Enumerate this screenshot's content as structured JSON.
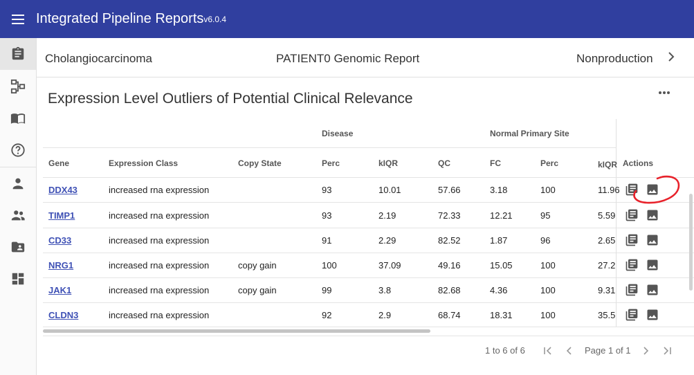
{
  "header": {
    "menu_icon": "menu-icon",
    "title": "Integrated Pipeline Reports",
    "version": "v6.0.4",
    "bg_color": "#303f9f"
  },
  "sidebar": {
    "items": [
      {
        "icon": "clipboard-icon",
        "active": true
      },
      {
        "icon": "pipeline-icon"
      },
      {
        "icon": "book-icon"
      },
      {
        "icon": "help-icon"
      },
      {
        "icon": "person-icon"
      },
      {
        "icon": "people-icon"
      },
      {
        "icon": "folder-person-icon"
      },
      {
        "icon": "dashboard-icon"
      }
    ]
  },
  "subheader": {
    "left": "Cholangiocarcinoma",
    "center": "PATIENT0 Genomic Report",
    "right": "Nonproduction",
    "chevron_icon": "chevron-right-icon"
  },
  "card": {
    "title": "Expression Level Outliers of Potential Clinical Relevance",
    "more_icon": "more-horiz-icon"
  },
  "table": {
    "groups": {
      "disease": "Disease",
      "normal": "Normal Primary Site"
    },
    "columns": {
      "gene": "Gene",
      "expression_class": "Expression Class",
      "copy_state": "Copy State",
      "disease_perc": "Perc",
      "disease_kiqr": "kIQR",
      "qc": "QC",
      "fc": "FC",
      "normal_perc": "Perc",
      "normal_kiqr": "kIQR",
      "actions": "Actions"
    },
    "rows": [
      {
        "gene": "DDX43",
        "expression_class": "increased rna expression",
        "copy_state": "",
        "disease_perc": "93",
        "disease_kiqr": "10.01",
        "qc": "57.66",
        "fc": "3.18",
        "normal_perc": "100",
        "normal_kiqr": "11.96"
      },
      {
        "gene": "TIMP1",
        "expression_class": "increased rna expression",
        "copy_state": "",
        "disease_perc": "93",
        "disease_kiqr": "2.19",
        "qc": "72.33",
        "fc": "12.21",
        "normal_perc": "95",
        "normal_kiqr": "5.59"
      },
      {
        "gene": "CD33",
        "expression_class": "increased rna expression",
        "copy_state": "",
        "disease_perc": "91",
        "disease_kiqr": "2.29",
        "qc": "82.52",
        "fc": "1.87",
        "normal_perc": "96",
        "normal_kiqr": "2.65"
      },
      {
        "gene": "NRG1",
        "expression_class": "increased rna expression",
        "copy_state": "copy gain",
        "disease_perc": "100",
        "disease_kiqr": "37.09",
        "qc": "49.16",
        "fc": "15.05",
        "normal_perc": "100",
        "normal_kiqr": "27.2"
      },
      {
        "gene": "JAK1",
        "expression_class": "increased rna expression",
        "copy_state": "copy gain",
        "disease_perc": "99",
        "disease_kiqr": "3.8",
        "qc": "82.68",
        "fc": "4.36",
        "normal_perc": "100",
        "normal_kiqr": "9.31"
      },
      {
        "gene": "CLDN3",
        "expression_class": "increased rna expression",
        "copy_state": "",
        "disease_perc": "92",
        "disease_kiqr": "2.9",
        "qc": "68.74",
        "fc": "18.31",
        "normal_perc": "100",
        "normal_kiqr": "35.5"
      }
    ],
    "action_icons": [
      "library-books-icon",
      "image-icon"
    ]
  },
  "pagination": {
    "range_text": "1 to 6 of 6",
    "page_text": "Page 1 of 1",
    "icons": [
      "first-page-icon",
      "chevron-left-icon",
      "chevron-right-icon",
      "last-page-icon"
    ]
  },
  "annotation": {
    "icon": "red-circle-annotation-icon",
    "color": "#e8222b"
  }
}
